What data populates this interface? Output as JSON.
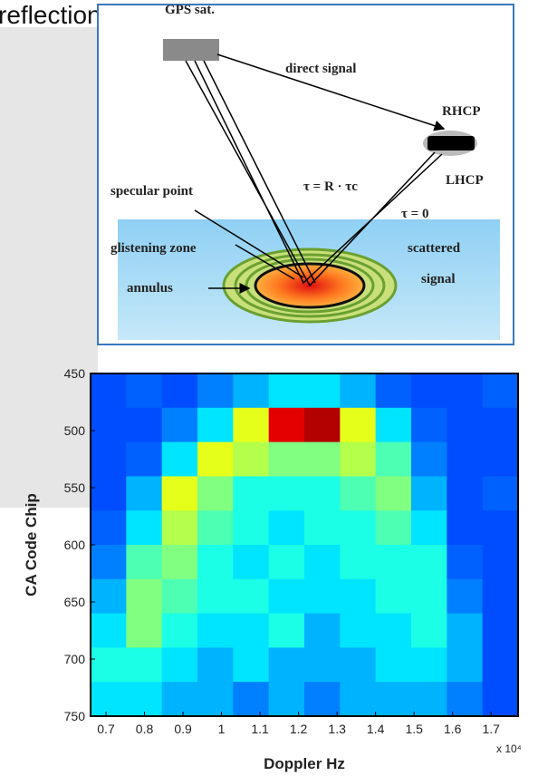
{
  "header": {
    "title": "reflections"
  },
  "diagram": {
    "labels": {
      "satellite": "GPS sat.",
      "direct": "direct signal",
      "rhcp": "RHCP",
      "lhcp": "LHCP",
      "specular": "specular point",
      "tau_rc": "τ = R · τc",
      "tau_zero": "τ = 0",
      "glistening": "glistening zone",
      "scattered1": "scattered",
      "scattered2": "signal",
      "annulus": "annulus"
    }
  },
  "chart_data": {
    "type": "heatmap",
    "xlabel": "Doppler Hz",
    "ylabel": "CA Code Chip",
    "x_multiplier": "x 10⁴",
    "xlim": [
      0.66,
      1.77
    ],
    "xticks": [
      0.7,
      0.8,
      0.9,
      1,
      1.1,
      1.2,
      1.3,
      1.4,
      1.5,
      1.6,
      1.7
    ],
    "ylim": [
      450,
      750
    ],
    "yticks": [
      450,
      500,
      550,
      600,
      650,
      700,
      750
    ],
    "y_reversed": true,
    "colormap": "jet",
    "zlim": [
      0,
      1
    ],
    "z": [
      [
        0.2,
        0.22,
        0.2,
        0.25,
        0.3,
        0.35,
        0.35,
        0.3,
        0.22,
        0.2,
        0.2,
        0.22
      ],
      [
        0.2,
        0.2,
        0.25,
        0.35,
        0.6,
        0.9,
        0.95,
        0.6,
        0.35,
        0.22,
        0.2,
        0.2
      ],
      [
        0.2,
        0.22,
        0.35,
        0.6,
        0.55,
        0.5,
        0.5,
        0.55,
        0.45,
        0.25,
        0.2,
        0.2
      ],
      [
        0.2,
        0.3,
        0.6,
        0.5,
        0.4,
        0.4,
        0.4,
        0.45,
        0.5,
        0.3,
        0.2,
        0.22
      ],
      [
        0.22,
        0.35,
        0.55,
        0.45,
        0.4,
        0.35,
        0.4,
        0.4,
        0.45,
        0.35,
        0.2,
        0.2
      ],
      [
        0.25,
        0.45,
        0.5,
        0.4,
        0.35,
        0.4,
        0.35,
        0.4,
        0.4,
        0.4,
        0.22,
        0.2
      ],
      [
        0.3,
        0.5,
        0.45,
        0.4,
        0.4,
        0.35,
        0.35,
        0.35,
        0.4,
        0.4,
        0.25,
        0.2
      ],
      [
        0.35,
        0.5,
        0.4,
        0.35,
        0.35,
        0.4,
        0.3,
        0.35,
        0.35,
        0.4,
        0.3,
        0.2
      ],
      [
        0.4,
        0.4,
        0.35,
        0.3,
        0.35,
        0.3,
        0.3,
        0.3,
        0.35,
        0.35,
        0.3,
        0.2
      ],
      [
        0.35,
        0.35,
        0.3,
        0.3,
        0.25,
        0.3,
        0.25,
        0.3,
        0.3,
        0.3,
        0.25,
        0.2
      ]
    ]
  }
}
